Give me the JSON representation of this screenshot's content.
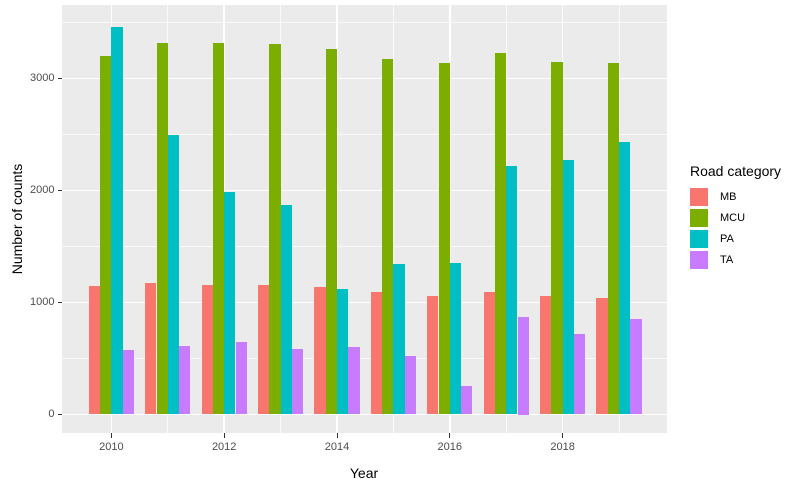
{
  "figure": {
    "background_color": "#FFFFFF",
    "panel_background_color": "#EBEBEB",
    "gridline_color": "#FFFFFF",
    "tick_label_color": "#4D4D4D",
    "axis_title_color": "#000000"
  },
  "chart_data": {
    "type": "bar",
    "title": "",
    "xlabel": "Year",
    "ylabel": "Number of counts",
    "categories": [
      2010,
      2011,
      2012,
      2013,
      2014,
      2015,
      2016,
      2017,
      2018,
      2019
    ],
    "series": [
      {
        "name": "MB",
        "color": "#F8766D",
        "values": [
          1150,
          1170,
          1160,
          1160,
          1135,
          1095,
          1060,
          1090,
          1060,
          1040
        ]
      },
      {
        "name": "MCU",
        "color": "#7CAE00",
        "values": [
          3200,
          3320,
          3320,
          3310,
          3260,
          3175,
          3140,
          3230,
          3145,
          3135
        ]
      },
      {
        "name": "PA",
        "color": "#00BFC4",
        "values": [
          3460,
          2495,
          1985,
          1870,
          1120,
          1345,
          1350,
          2220,
          2270,
          2430
        ]
      },
      {
        "name": "TA",
        "color": "#C77CFF",
        "values": [
          575,
          610,
          645,
          585,
          600,
          520,
          255,
          875,
          720,
          855
        ]
      }
    ],
    "ylim": [
      0,
      3650
    ],
    "y_major_ticks": [
      0,
      1000,
      2000,
      3000
    ],
    "y_minor_ticks": [
      500,
      1500,
      2500,
      3500
    ],
    "y_tick_labels": [
      "0",
      "1000",
      "2000",
      "3000"
    ],
    "x_labeled_ticks": [
      2010,
      2012,
      2014,
      2016,
      2018
    ],
    "x_tick_labels": [
      "2010",
      "2012",
      "2014",
      "2016",
      "2018"
    ],
    "grid": true,
    "legend": {
      "title": "Road category",
      "position": "right",
      "labels": [
        "MB",
        "MCU",
        "PA",
        "TA"
      ]
    }
  }
}
